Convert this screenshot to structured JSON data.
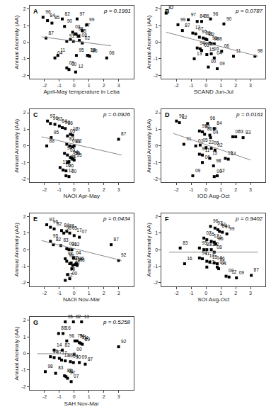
{
  "chart_data": [
    {
      "type": "scatter",
      "title": "A",
      "xlabel": "April-May temperature in Leba",
      "ylabel": "Annual Anomaly (AA)",
      "annotations": [
        "p = 0.1991"
      ],
      "grid": false,
      "xlim": [
        -3,
        4
      ],
      "ylim": [
        -2.2,
        2.2
      ],
      "xticks": [
        -2,
        -1,
        0,
        1,
        2,
        3
      ],
      "yticks": [
        -2,
        -1,
        0,
        1,
        2
      ],
      "series": [
        {
          "type": "scatter",
          "marker": "square",
          "color": "#000000",
          "x": [
            -2.1,
            -1.8,
            -1.5,
            -0.8,
            0.2,
            0.85,
            0.55,
            -1.9,
            -0.65,
            -0.1,
            0.1,
            0.3,
            -0.25,
            -0.5,
            -0.05,
            0.35,
            0.55,
            -1.1,
            -1.3,
            0.15,
            0.9,
            0.95,
            1.05,
            2.2,
            -0.5,
            -0.35,
            0.1
          ],
          "values": [
            1.5,
            1.3,
            1.15,
            1.4,
            1.4,
            1.05,
            0.7,
            0.25,
            0.95,
            0.6,
            0.5,
            0.35,
            0.15,
            0.05,
            0.05,
            0.1,
            -0.05,
            -0.8,
            -0.95,
            -0.8,
            -0.8,
            -0.8,
            -0.85,
            -0.95,
            -1.55,
            -1.65,
            -1.8
          ],
          "labels": [
            "96",
            "84",
            "85",
            "82",
            "97",
            "99",
            "07",
            "87",
            "90",
            "03",
            "98",
            "05",
            "83",
            "91",
            "86",
            "08",
            "02",
            "11",
            "04",
            "95",
            "13",
            "14",
            "16",
            "06",
            "09",
            "00",
            "12"
          ]
        },
        {
          "type": "line",
          "color": "#888888",
          "x": [
            -2.2,
            2.5
          ],
          "values": [
            0.32,
            -0.22
          ]
        }
      ]
    },
    {
      "type": "scatter",
      "title": "B",
      "xlabel": "SCAND Jun-Jul",
      "ylabel": "Annual Anomaly (AA)",
      "annotations": [
        "p = 0.0787"
      ],
      "grid": false,
      "xlim": [
        -3,
        4
      ],
      "ylim": [
        -2.2,
        2.2
      ],
      "xticks": [
        -2,
        -1,
        0,
        1,
        2,
        3
      ],
      "yticks": [
        -2,
        -1,
        0,
        1,
        2
      ],
      "series": [
        {
          "type": "scatter",
          "marker": "square",
          "color": "#000000",
          "x": [
            -2.7,
            -1.9,
            -1.2,
            -0.6,
            -0.3,
            0.3,
            1.2,
            -1.6,
            -0.9,
            -0.7,
            -0.45,
            -0.2,
            -0.05,
            0.05,
            0.25,
            0.35,
            0.55,
            -0.6,
            -0.4,
            -0.3,
            0.05,
            0.35,
            1.05,
            1.85,
            -0.8,
            0.55,
            0.15,
            0.75,
            3.3
          ],
          "values": [
            1.75,
            1.05,
            1.35,
            1.25,
            1.25,
            1.4,
            1.1,
            0.7,
            0.55,
            0.5,
            0.3,
            0.25,
            0.2,
            0.15,
            -0.05,
            -0.1,
            -0.1,
            -0.35,
            -0.4,
            -0.5,
            -0.75,
            -0.7,
            -0.55,
            -0.85,
            -1.0,
            -0.95,
            -1.5,
            -1.6,
            -0.85
          ],
          "labels": [
            "82",
            "99",
            "97",
            "84",
            "86",
            "96",
            "90",
            "87",
            "17",
            "07",
            "95",
            "05",
            "01",
            "02",
            "91",
            "98",
            "08",
            "94",
            "10",
            "03",
            "15",
            "16",
            "06",
            "11",
            "13",
            "04",
            "00",
            "09",
            "98"
          ]
        },
        {
          "type": "line",
          "color": "#888888",
          "x": [
            -2.7,
            3.5
          ],
          "values": [
            0.6,
            -0.85
          ]
        }
      ]
    },
    {
      "type": "scatter",
      "title": "C",
      "xlabel": "NAOI Apr-May",
      "ylabel": "Annual Anomaly (AA)",
      "annotations": [
        "p = 0.0926"
      ],
      "grid": false,
      "xlim": [
        -3,
        4
      ],
      "ylim": [
        -2.2,
        2.2
      ],
      "xticks": [
        -2,
        -1,
        0,
        1,
        2,
        3
      ],
      "yticks": [
        -2,
        -1,
        0,
        1,
        2
      ],
      "series": [
        {
          "type": "scatter",
          "marker": "square",
          "color": "#000000",
          "x": [
            -1.8,
            -1.6,
            -1.3,
            -1.0,
            -0.8,
            -0.6,
            -0.45,
            -0.25,
            -0.1,
            -1.55,
            -1.85,
            -0.5,
            -0.3,
            -0.1,
            0.0,
            3.0,
            -0.65,
            -0.45,
            -0.25,
            -0.15,
            -0.1,
            0.0,
            -0.45,
            -0.35,
            -0.95,
            -0.75,
            -0.55,
            -0.55,
            -0.35
          ],
          "values": [
            1.5,
            1.35,
            1.3,
            1.2,
            1.1,
            1.05,
            0.6,
            0.7,
            0.65,
            0.5,
            0.0,
            0.1,
            0.0,
            -0.05,
            0.0,
            0.4,
            -0.45,
            -0.55,
            -0.7,
            -0.75,
            -0.8,
            -0.85,
            -1.0,
            -0.95,
            -1.3,
            -1.45,
            -1.5,
            -1.8,
            -1.85
          ],
          "labels": [
            "97",
            "96",
            "82",
            "84",
            "90",
            "86",
            "05",
            "17",
            "07",
            "95",
            "88",
            "83",
            "01",
            "93",
            "02",
            "87",
            "94",
            "03",
            "04",
            "98",
            "14",
            "15",
            "99",
            "11",
            "13",
            "16",
            "06",
            "12",
            "00"
          ]
        },
        {
          "type": "line",
          "color": "#888888",
          "x": [
            -2.2,
            3.2
          ],
          "values": [
            0.55,
            -0.55
          ]
        }
      ]
    },
    {
      "type": "scatter",
      "title": "D",
      "xlabel": "IOD Aug-Oct",
      "ylabel": "Annual Anomaly (AA)",
      "annotations": [
        "p = 0.0161"
      ],
      "grid": false,
      "xlim": [
        -3,
        4
      ],
      "ylim": [
        -2.2,
        2.2
      ],
      "xticks": [
        -2,
        -1,
        0,
        1,
        2,
        3
      ],
      "yticks": [
        -2,
        -1,
        0,
        1,
        2
      ],
      "series": [
        {
          "type": "scatter",
          "marker": "square",
          "color": "#000000",
          "x": [
            -2.0,
            -1.8,
            0.1,
            0.55,
            -0.45,
            -0.25,
            -0.1,
            0.25,
            0.3,
            1.8,
            2.0,
            2.5,
            -1.5,
            -0.7,
            -0.4,
            0.0,
            0.35,
            0.6,
            -0.45,
            -0.25,
            0.25,
            1.3,
            1.5,
            -0.25,
            0.5,
            -0.9,
            0.55,
            0.75
          ],
          "values": [
            1.5,
            1.4,
            1.35,
            1.05,
            0.9,
            0.85,
            0.7,
            0.65,
            0.5,
            0.55,
            0.55,
            0.5,
            0.1,
            0.0,
            0.05,
            -0.1,
            -0.15,
            -0.25,
            -0.5,
            -0.55,
            -0.75,
            -0.75,
            -0.8,
            -1.0,
            -1.2,
            -1.8,
            -1.85,
            -1.8
          ],
          "labels": [
            "97",
            "82",
            "96",
            "84",
            "99",
            "90",
            "86",
            "17",
            "04",
            "07",
            "03",
            "83",
            "91",
            "01",
            "05",
            "22",
            "08",
            "02",
            "94",
            "11",
            "15",
            "16",
            "13",
            "06",
            "98",
            "09",
            "00",
            "12"
          ]
        },
        {
          "type": "line",
          "color": "#888888",
          "x": [
            -2.2,
            3.0
          ],
          "values": [
            0.75,
            -0.85
          ]
        }
      ]
    },
    {
      "type": "scatter",
      "title": "E",
      "xlabel": "NAOI Nov-Mar",
      "ylabel": "Annual Anomaly (AA)",
      "annotations": [
        "p = 0.0434"
      ],
      "grid": false,
      "xlim": [
        -3,
        4
      ],
      "ylim": [
        -2.2,
        2.2
      ],
      "xticks": [
        -2,
        -1,
        0,
        1,
        2,
        3
      ],
      "yticks": [
        -2,
        -1,
        0,
        1,
        2
      ],
      "series": [
        {
          "type": "scatter",
          "marker": "square",
          "color": "#000000",
          "x": [
            -1.85,
            -1.6,
            -1.35,
            -0.85,
            -0.7,
            -0.5,
            -0.3,
            0.0,
            0.35,
            -1.6,
            -1.4,
            -0.9,
            -0.5,
            -0.35,
            -0.15,
            2.5,
            -0.6,
            -0.5,
            -0.3,
            -0.2,
            -0.1,
            0.05,
            0.15,
            0.2,
            -0.05,
            -0.15,
            -0.45,
            -0.3,
            -0.6,
            3.0
          ],
          "values": [
            1.5,
            1.35,
            1.25,
            1.15,
            1.0,
            1.1,
            1.0,
            0.85,
            0.75,
            0.5,
            0.3,
            0.25,
            0.05,
            0.0,
            0.0,
            0.3,
            -0.55,
            -0.7,
            -0.85,
            -0.8,
            -0.95,
            -0.9,
            -0.85,
            -0.95,
            -0.5,
            -1.15,
            -1.5,
            -1.75,
            -1.85,
            -0.65
          ],
          "labels": [
            "97",
            "96",
            "82",
            "84",
            "90",
            "86",
            "05",
            "17",
            "07",
            "95",
            "82",
            "83",
            "01",
            "91",
            "02",
            "87",
            "98",
            "94",
            "03",
            "15",
            "13",
            "14",
            "16",
            "06",
            "04",
            "09",
            "99",
            "00",
            "12",
            "92"
          ]
        },
        {
          "type": "line",
          "color": "#888888",
          "x": [
            -2.2,
            3.2
          ],
          "values": [
            0.55,
            -0.65
          ]
        }
      ]
    },
    {
      "type": "scatter",
      "title": "F",
      "xlabel": "SOI Aug-Oct",
      "ylabel": "Annual Anomaly (AA)",
      "annotations": [
        "p = 0.9402"
      ],
      "grid": false,
      "xlim": [
        -3,
        4
      ],
      "ylim": [
        -2.2,
        2.2
      ],
      "xticks": [
        -2,
        -1,
        0,
        1,
        2,
        3
      ],
      "yticks": [
        -2,
        -1,
        0,
        1,
        2
      ],
      "series": [
        {
          "type": "scatter",
          "marker": "square",
          "color": "#000000",
          "x": [
            0.3,
            0.6,
            0.8,
            0.9,
            1.1,
            1.4,
            -0.15,
            0.05,
            0.35,
            0.55,
            0.65,
            -1.75,
            -0.45,
            -0.15,
            0.05,
            0.35,
            0.55,
            -0.45,
            -0.25,
            0.05,
            0.25,
            0.55,
            0.75,
            -1.45,
            0.05,
            0.75,
            0.85,
            1.35,
            1.55,
            2.05,
            3.05
          ],
          "values": [
            1.4,
            1.3,
            1.2,
            1.1,
            1.05,
            0.95,
            0.7,
            0.6,
            0.5,
            0.45,
            0.35,
            0.1,
            0.1,
            0.0,
            0.0,
            0.0,
            -0.15,
            -0.5,
            -0.55,
            -0.7,
            -0.75,
            -0.8,
            -0.85,
            -0.85,
            -1.05,
            -1.05,
            -1.15,
            -1.6,
            -1.65,
            -1.7,
            -1.55
          ],
          "labels": [
            "96",
            "97",
            "82",
            "84",
            "90",
            "99",
            "07",
            "05",
            "17",
            "01",
            "86",
            "83",
            "95",
            "87",
            "91",
            "02",
            "08",
            "94",
            "11",
            "10",
            "15",
            "14",
            "06",
            "16",
            "13",
            "03",
            "04",
            "00",
            "12",
            "09",
            "87"
          ]
        },
        {
          "type": "line",
          "color": "#888888",
          "x": [
            -2.5,
            3.5
          ],
          "values": [
            -0.15,
            -0.15
          ]
        }
      ]
    },
    {
      "type": "scatter",
      "title": "G",
      "xlabel": "SAH Nov-Mar",
      "ylabel": "Annual Anomaly (AA)",
      "annotations": [
        "p = 0.5258"
      ],
      "grid": false,
      "xlim": [
        -3,
        4
      ],
      "ylim": [
        -2.2,
        2.2
      ],
      "xticks": [
        -2,
        -1,
        0,
        1,
        2,
        3
      ],
      "yticks": [
        -2,
        -1,
        0,
        1,
        2
      ],
      "series": [
        {
          "type": "scatter",
          "marker": "square",
          "color": "#000000",
          "x": [
            -0.6,
            -0.05,
            0.5,
            -1.05,
            -0.75,
            -0.5,
            0.05,
            0.2,
            0.35,
            0.45,
            0.55,
            3.0,
            -1.35,
            -0.8,
            0.0,
            -1.6,
            -1.35,
            -1.0,
            -0.85,
            -0.6,
            -0.25,
            -0.05,
            0.35,
            0.75,
            -1.95,
            -1.25,
            -0.65,
            -0.55,
            -0.45,
            -0.2
          ],
          "values": [
            1.9,
            1.9,
            1.9,
            1.2,
            1.2,
            0.75,
            0.75,
            0.75,
            0.65,
            0.6,
            0.55,
            0.4,
            0.2,
            0.2,
            -0.05,
            -0.2,
            -0.25,
            -0.3,
            -0.4,
            -0.45,
            -0.5,
            -0.55,
            -0.55,
            -0.65,
            -1.1,
            -1.2,
            -1.35,
            -1.4,
            -1.5,
            -1.7
          ],
          "labels": [
            "95",
            "82",
            "13",
            "88",
            "16",
            "96",
            "75",
            "94",
            "91",
            "04",
            "89",
            "92",
            "14",
            "82",
            "00",
            "16",
            "97",
            "17",
            "12",
            "96",
            "04",
            "90",
            "09",
            "87",
            "98",
            "83",
            "88",
            "01",
            "97",
            "07"
          ]
        },
        {
          "type": "line",
          "color": "#888888",
          "x": [
            -2.5,
            0.1
          ],
          "values": [
            -0.02,
            -0.02
          ]
        }
      ]
    }
  ]
}
